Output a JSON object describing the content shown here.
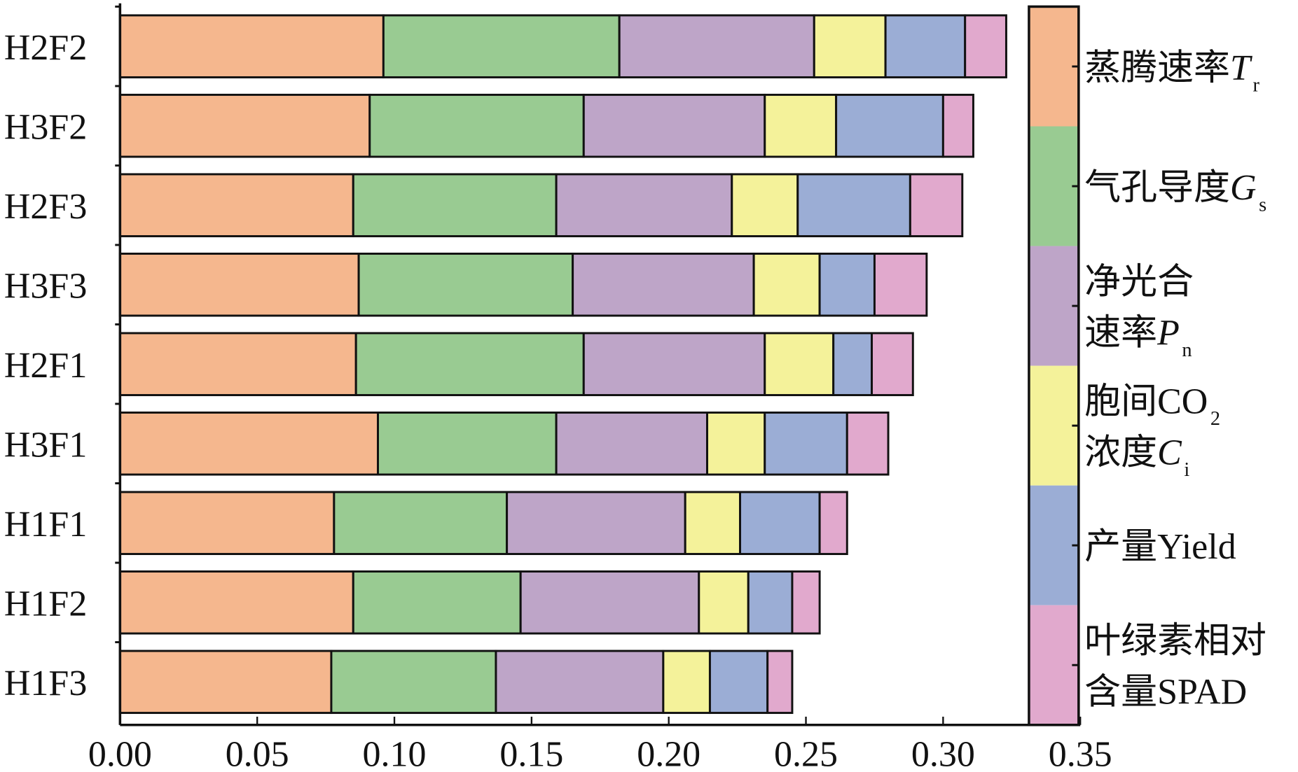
{
  "chart_data": {
    "type": "bar",
    "orientation": "horizontal",
    "stacked": true,
    "title": "",
    "xlabel": "",
    "ylabel": "",
    "xlim": [
      0,
      0.35
    ],
    "xticks": [
      "0.00",
      "0.05",
      "0.10",
      "0.15",
      "0.20",
      "0.25",
      "0.30",
      "0.35"
    ],
    "grid": false,
    "legend_position": "right",
    "categories": [
      "H2F2",
      "H3F2",
      "H2F3",
      "H3F3",
      "H2F1",
      "H3F1",
      "H1F1",
      "H1F2",
      "H1F3"
    ],
    "series": [
      {
        "name": "蒸腾速率Tr",
        "color": "#F5B78E",
        "values": [
          0.096,
          0.091,
          0.085,
          0.087,
          0.086,
          0.094,
          0.078,
          0.085,
          0.077
        ]
      },
      {
        "name": "气孔导度Gs",
        "color": "#99CB92",
        "values": [
          0.086,
          0.078,
          0.074,
          0.078,
          0.083,
          0.065,
          0.063,
          0.061,
          0.06
        ]
      },
      {
        "name": "净光合速率Pn",
        "color": "#BEA5C8",
        "values": [
          0.071,
          0.066,
          0.064,
          0.066,
          0.066,
          0.055,
          0.065,
          0.065,
          0.061
        ]
      },
      {
        "name": "胞间CO2浓度Ci",
        "color": "#F4F29A",
        "values": [
          0.026,
          0.026,
          0.024,
          0.024,
          0.025,
          0.021,
          0.02,
          0.018,
          0.017
        ]
      },
      {
        "name": "产量Yield",
        "color": "#9BADD5",
        "values": [
          0.029,
          0.039,
          0.041,
          0.02,
          0.014,
          0.03,
          0.029,
          0.016,
          0.021
        ]
      },
      {
        "name": "叶绿素相对含量SPAD",
        "color": "#E1A9CD",
        "values": [
          0.015,
          0.011,
          0.019,
          0.019,
          0.015,
          0.015,
          0.01,
          0.01,
          0.009
        ]
      }
    ],
    "legend": [
      {
        "lines": [
          [
            {
              "t": "蒸腾速率"
            },
            {
              "t": "T",
              "i": true
            },
            {
              "t": "r",
              "sub": true
            }
          ]
        ]
      },
      {
        "lines": [
          [
            {
              "t": "气孔导度"
            },
            {
              "t": "G",
              "i": true
            },
            {
              "t": "s",
              "sub": true
            }
          ]
        ]
      },
      {
        "lines": [
          [
            {
              "t": "净光合"
            }
          ],
          [
            {
              "t": "速率"
            },
            {
              "t": "P",
              "i": true
            },
            {
              "t": "n",
              "sub": true
            }
          ]
        ]
      },
      {
        "lines": [
          [
            {
              "t": "胞间CO"
            },
            {
              "t": "2",
              "sub": true
            }
          ],
          [
            {
              "t": "浓度"
            },
            {
              "t": "C",
              "i": true
            },
            {
              "t": "i",
              "sub": true
            }
          ]
        ]
      },
      {
        "lines": [
          [
            {
              "t": "产量Yield"
            }
          ]
        ]
      },
      {
        "lines": [
          [
            {
              "t": "叶绿素相对"
            }
          ],
          [
            {
              "t": "含量SPAD"
            }
          ]
        ]
      }
    ]
  }
}
